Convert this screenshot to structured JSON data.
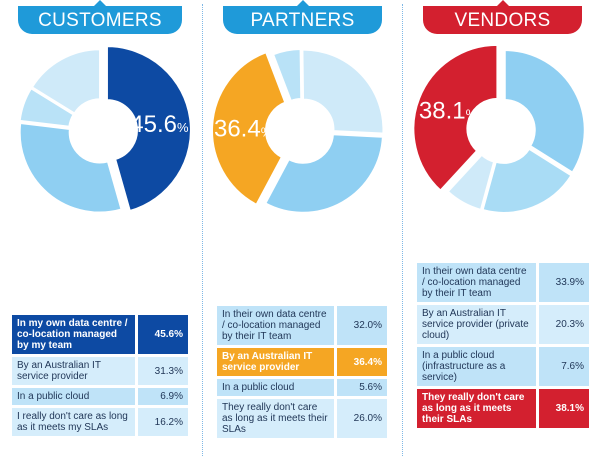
{
  "chart_data": [
    {
      "type": "pie",
      "title": "CUSTOMERS",
      "categories": [
        "In my own data centre / co-location managed by my team",
        "By an Australian IT service provider",
        "In a public cloud",
        "I really don't care as long as it meets my SLAs"
      ],
      "values": [
        45.6,
        31.3,
        6.9,
        16.2
      ],
      "display_values": [
        "45.6%",
        "31.3%",
        "6.9%",
        "16.2%"
      ],
      "highlight_index": 0,
      "colors": [
        "#0d4aa3",
        "#8fcff2",
        "#b9e2f7",
        "#cfeaf9"
      ],
      "header_color": "#1f9ad9",
      "highlight_value_text": "45.6",
      "highlight_value_unit": "%"
    },
    {
      "type": "pie",
      "title": "PARTNERS",
      "categories": [
        "In their own data centre / co-location managed by their IT team",
        "By an Australian IT service provider",
        "In a public cloud",
        "They really don't care as long as it meets their SLAs"
      ],
      "values": [
        32.0,
        36.4,
        5.6,
        26.0
      ],
      "display_values": [
        "32.0%",
        "36.4%",
        "5.6%",
        "26.0%"
      ],
      "highlight_index": 1,
      "colors": [
        "#8fcff2",
        "#f5a623",
        "#b9e2f7",
        "#cfeaf9"
      ],
      "header_color": "#1f9ad9",
      "highlight_value_text": "36.4",
      "highlight_value_unit": "%"
    },
    {
      "type": "pie",
      "title": "VENDORS",
      "categories": [
        "In their own data centre / co-location managed by their IT team",
        "By an Australian IT service provider (private cloud)",
        "In a public cloud (infrastructure as a service)",
        "They really don't care as long as it meets their SLAs"
      ],
      "values": [
        33.9,
        20.3,
        7.6,
        38.1
      ],
      "display_values": [
        "33.9%",
        "20.3%",
        "7.6%",
        "38.1%"
      ],
      "highlight_index": 3,
      "colors": [
        "#8fcff2",
        "#a9dcf5",
        "#cfeaf9",
        "#d3202f"
      ],
      "header_color": "#d3202f",
      "highlight_value_text": "38.1",
      "highlight_value_unit": "%"
    }
  ],
  "highlight_styles": {
    "0": {
      "bg": "#0d4aa3",
      "fg": "#ffffff"
    },
    "1": {
      "bg": "#f5a623",
      "fg": "#ffffff"
    },
    "2": {
      "bg": "#d3202f",
      "fg": "#ffffff"
    }
  },
  "row_bg": "#bfe3f8",
  "row_bg_alt": "#d5edfb"
}
